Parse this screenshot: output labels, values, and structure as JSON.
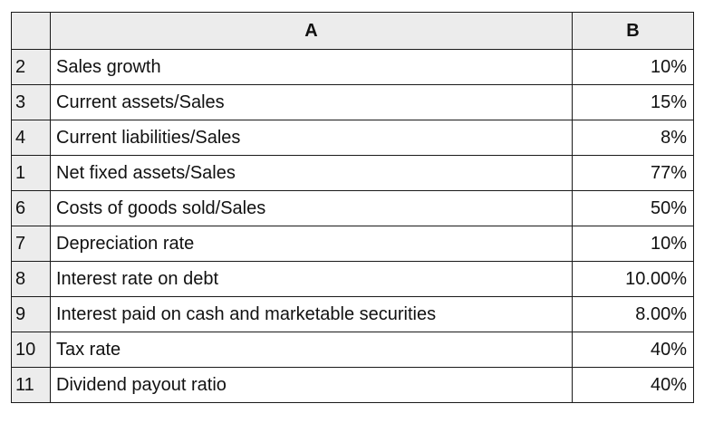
{
  "columns": {
    "corner": "",
    "a": "A",
    "b": "B"
  },
  "rows": [
    {
      "num": "2",
      "label": "Sales growth",
      "value": "10%"
    },
    {
      "num": "3",
      "label": "Current assets/Sales",
      "value": "15%"
    },
    {
      "num": "4",
      "label": "Current liabilities/Sales",
      "value": "8%"
    },
    {
      "num": "1",
      "label": "Net fixed assets/Sales",
      "value": "77%"
    },
    {
      "num": "6",
      "label": "Costs of goods sold/Sales",
      "value": "50%"
    },
    {
      "num": "7",
      "label": "Depreciation rate",
      "value": "10%"
    },
    {
      "num": "8",
      "label": "Interest rate on debt",
      "value": "10.00%"
    },
    {
      "num": "9",
      "label": "Interest paid on cash and marketable securities",
      "value": "8.00%"
    },
    {
      "num": "10",
      "label": "Tax rate",
      "value": "40%"
    },
    {
      "num": "11",
      "label": "Dividend payout ratio",
      "value": "40%"
    }
  ],
  "colors": {
    "header_bg": "#ececec",
    "grid": "#1a1a1a",
    "cell_bg": "#ffffff"
  }
}
